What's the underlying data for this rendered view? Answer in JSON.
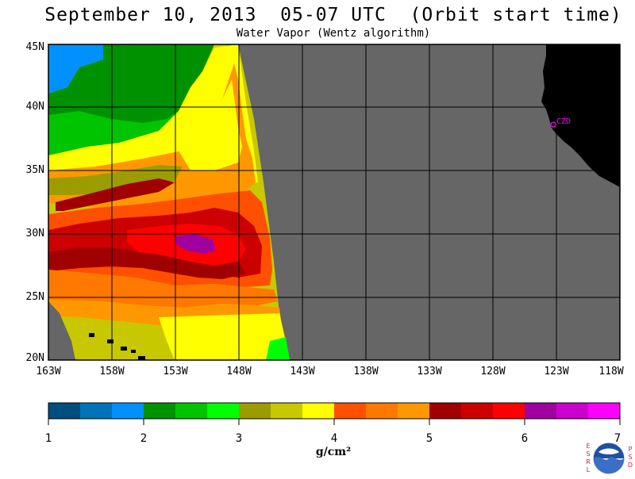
{
  "header": {
    "title": "September 10, 2013  05-07 UTC  (Orbit start time)",
    "subtitle": "Water Vapor (Wentz algorithm)"
  },
  "map": {
    "lat_labels": [
      "45N",
      "40N",
      "35N",
      "30N",
      "25N",
      "20N"
    ],
    "lon_labels": [
      "163W",
      "158W",
      "153W",
      "148W",
      "143W",
      "138W",
      "133W",
      "128W",
      "123W",
      "118W"
    ],
    "station_label": "CZD",
    "colors": {
      "no_data": "#666666",
      "land": "#000000",
      "station": "#ff00ff",
      "grid": "#000000"
    }
  },
  "colorbar": {
    "tick_labels": [
      "1",
      "2",
      "3",
      "4",
      "5",
      "6",
      "7"
    ],
    "unit": "g/cm²",
    "colors": [
      "#004f7d",
      "#0073b8",
      "#0091ff",
      "#009100",
      "#00c400",
      "#00ff00",
      "#9c9c00",
      "#c8c800",
      "#ffff00",
      "#ff5000",
      "#ff7800",
      "#ff9800",
      "#a00000",
      "#cc0000",
      "#ff0000",
      "#a000a0",
      "#cc00cc",
      "#ff00ff"
    ]
  },
  "logo": {
    "name": "NOAA",
    "left_letters": [
      "E",
      "S",
      "R",
      "L"
    ],
    "right_letters": [
      "P",
      "S",
      "D"
    ]
  }
}
